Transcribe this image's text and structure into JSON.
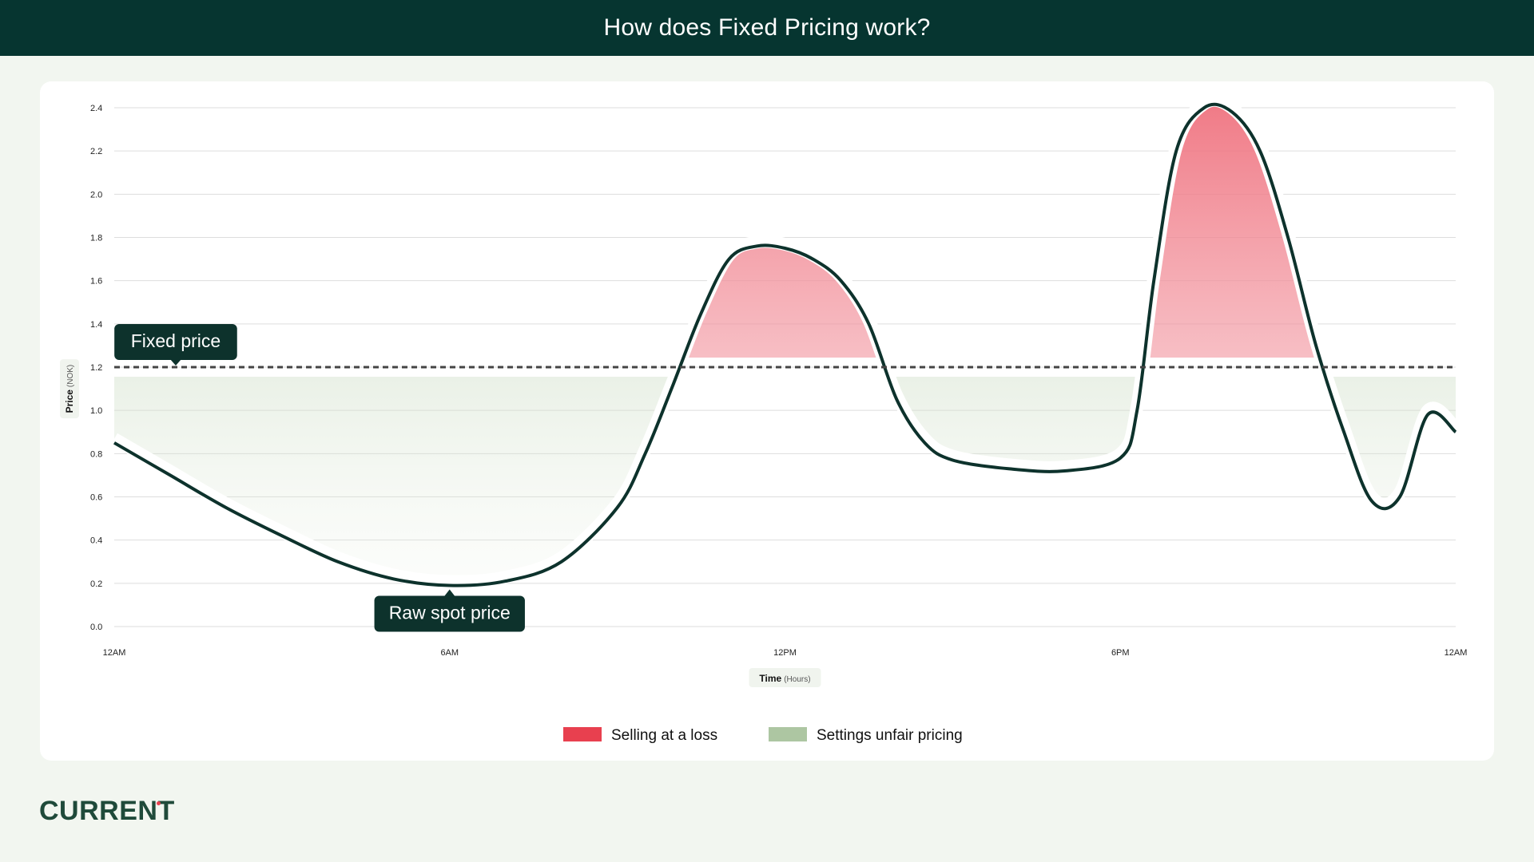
{
  "header": {
    "title": "How does Fixed Pricing work?"
  },
  "brand": {
    "logo_text": "CURRENT"
  },
  "colors": {
    "header_bg": "#063530",
    "page_bg": "#f2f6f0",
    "loss": "#e8404f",
    "unfair": "#adc6a2",
    "spot_line": "#0d322c",
    "fixed_line": "#444444"
  },
  "chart_data": {
    "type": "line",
    "xlabel": "Time",
    "xlabel_unit": "(Hours)",
    "ylabel": "Price",
    "ylabel_unit": "(NOK)",
    "x_ticks": [
      {
        "x": 0,
        "label": "12AM"
      },
      {
        "x": 6,
        "label": "6AM"
      },
      {
        "x": 12,
        "label": "12PM"
      },
      {
        "x": 18,
        "label": "6PM"
      },
      {
        "x": 24,
        "label": "12AM"
      }
    ],
    "xlim": [
      0,
      24
    ],
    "ylim": [
      0,
      2.4
    ],
    "y_ticks": [
      0.0,
      0.2,
      0.4,
      0.6,
      0.8,
      1.0,
      1.2,
      1.4,
      1.6,
      1.8,
      2.0,
      2.2,
      2.4
    ],
    "grid": true,
    "fixed_price": 1.2,
    "series": [
      {
        "name": "Raw spot price",
        "x": [
          0,
          1,
          2,
          3,
          4,
          5,
          6,
          7,
          8,
          9,
          9.5,
          10,
          10.5,
          11,
          11.5,
          12,
          12.5,
          13,
          13.5,
          14,
          14.5,
          15,
          16,
          17,
          18,
          18.3,
          18.6,
          19,
          19.5,
          20,
          20.5,
          21,
          21.5,
          22,
          22.5,
          23,
          23.5,
          24
        ],
        "y": [
          0.85,
          0.7,
          0.55,
          0.42,
          0.3,
          0.22,
          0.19,
          0.21,
          0.3,
          0.55,
          0.8,
          1.12,
          1.45,
          1.7,
          1.76,
          1.75,
          1.7,
          1.6,
          1.4,
          1.05,
          0.85,
          0.77,
          0.73,
          0.72,
          0.78,
          1.0,
          1.6,
          2.2,
          2.4,
          2.38,
          2.2,
          1.8,
          1.3,
          0.9,
          0.58,
          0.6,
          0.98,
          0.9
        ]
      }
    ],
    "annotations": [
      {
        "text": "Fixed price",
        "x": 1.1,
        "y": 1.2
      },
      {
        "text": "Raw spot price",
        "x": 6,
        "y": 0.19
      }
    ],
    "legend": {
      "placement": "bottom-center",
      "items": [
        {
          "label": "Selling at a loss",
          "color": "#e8404f"
        },
        {
          "label": "Settings unfair pricing",
          "color": "#adc6a2"
        }
      ]
    }
  }
}
